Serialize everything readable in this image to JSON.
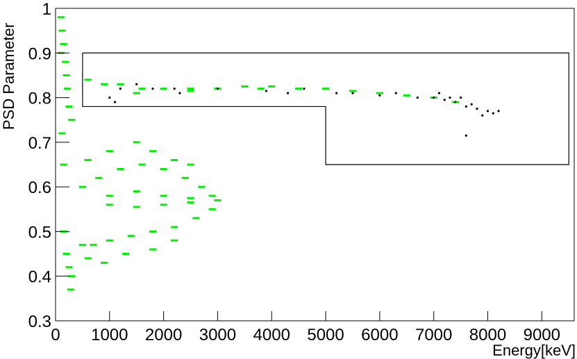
{
  "chart_data": {
    "type": "scatter",
    "xlabel": "Energy[keV]",
    "ylabel": "PSD Parameter",
    "xlim": [
      0,
      9600
    ],
    "ylim": [
      0.3,
      1
    ],
    "xticks": [
      0,
      1000,
      2000,
      3000,
      4000,
      5000,
      6000,
      7000,
      8000,
      9000
    ],
    "yticks": [
      0.3,
      0.4,
      0.5,
      0.6,
      0.7,
      0.8,
      0.9,
      1
    ],
    "cut": {
      "x": [
        500,
        9500,
        9500,
        5000,
        5000,
        500,
        500
      ],
      "y": [
        0.9,
        0.9,
        0.65,
        0.65,
        0.78,
        0.78,
        0.9
      ],
      "color": "#000000"
    },
    "series": [
      {
        "color": "#00ee00",
        "x": [
          100,
          120,
          150,
          180,
          200,
          220,
          250,
          300,
          150,
          200,
          250,
          300,
          280,
          150,
          120,
          100,
          500,
          800,
          1200,
          1600,
          2000,
          2400,
          2700,
          2900,
          3000,
          2900,
          2600,
          2200,
          1800,
          1400,
          1000,
          700,
          500,
          1000,
          1500,
          2000,
          2500,
          1000,
          1500,
          2000,
          2500,
          600,
          1000,
          1500,
          1800,
          2200,
          2500,
          600,
          900,
          1300,
          1800,
          2200,
          600,
          900,
          1200,
          1600,
          2000,
          2500,
          3000,
          3500,
          4000,
          4500,
          5000,
          5500,
          6000,
          6500,
          7000,
          7400,
          1500,
          2500,
          3800
        ],
        "y": [
          0.98,
          0.95,
          0.92,
          0.88,
          0.85,
          0.82,
          0.78,
          0.75,
          0.5,
          0.45,
          0.42,
          0.4,
          0.37,
          0.65,
          0.72,
          0.9,
          0.6,
          0.62,
          0.64,
          0.65,
          0.64,
          0.62,
          0.6,
          0.58,
          0.57,
          0.55,
          0.53,
          0.51,
          0.5,
          0.49,
          0.48,
          0.47,
          0.47,
          0.58,
          0.59,
          0.58,
          0.575,
          0.56,
          0.555,
          0.56,
          0.565,
          0.66,
          0.68,
          0.7,
          0.68,
          0.66,
          0.65,
          0.44,
          0.43,
          0.45,
          0.46,
          0.48,
          0.84,
          0.83,
          0.83,
          0.82,
          0.82,
          0.82,
          0.82,
          0.825,
          0.825,
          0.82,
          0.82,
          0.815,
          0.81,
          0.805,
          0.8,
          0.79,
          0.81,
          0.815,
          0.82
        ]
      },
      {
        "color": "#000000",
        "x": [
          1200,
          1500,
          1800,
          2200,
          2300,
          3000,
          3900,
          4300,
          4600,
          5200,
          5500,
          6000,
          6300,
          6700,
          7000,
          7200,
          7400,
          7500,
          7600,
          7700,
          7800,
          8000,
          8100,
          8200,
          7600,
          7900,
          1000,
          1100,
          7300,
          7100
        ],
        "y": [
          0.82,
          0.83,
          0.82,
          0.82,
          0.81,
          0.82,
          0.815,
          0.81,
          0.82,
          0.81,
          0.81,
          0.805,
          0.81,
          0.8,
          0.8,
          0.795,
          0.79,
          0.8,
          0.78,
          0.785,
          0.775,
          0.77,
          0.765,
          0.77,
          0.715,
          0.76,
          0.8,
          0.79,
          0.8,
          0.81
        ]
      }
    ]
  }
}
